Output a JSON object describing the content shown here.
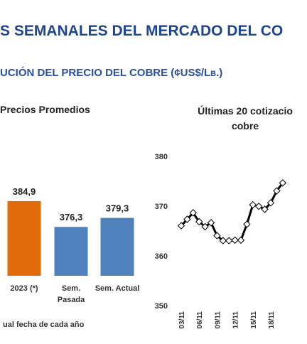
{
  "header": {
    "title": "S SEMANALES DEL MERCADO DEL CO",
    "subtitle": "UCIÓN DEL PRECIO DEL COBRE (¢US$/Lb.)"
  },
  "chart_data": [
    {
      "type": "bar",
      "title": "Precios Promedios",
      "categories": [
        "2023 (*)",
        "Sem.\nPasada",
        "Sem. Actual"
      ],
      "values": [
        384.9,
        376.3,
        379.3
      ],
      "value_labels": [
        "384,9",
        "376,3",
        "379,3"
      ],
      "colors": [
        "#e36c0a",
        "#4f81bd",
        "#4f81bd"
      ],
      "ylim": [
        360,
        392
      ],
      "note": "ual fecha de cada año"
    },
    {
      "type": "line",
      "title": "Últimas 20 cotizacio\ncobre",
      "categories": [
        "03/11",
        null,
        null,
        "06/11",
        null,
        null,
        "09/11",
        null,
        null,
        "12/11",
        null,
        null,
        "15/11",
        null,
        null,
        "18/11",
        null,
        null
      ],
      "values": [
        366.2,
        367.5,
        368.8,
        367,
        366,
        366.8,
        364.2,
        363.2,
        363.2,
        363.3,
        363.3,
        366.5,
        370.4,
        370.1,
        369.5,
        370.8,
        373.2,
        374.8
      ],
      "color": "#000000",
      "ylim": [
        350,
        383
      ],
      "yticks": [
        350,
        360,
        370,
        380
      ]
    }
  ]
}
